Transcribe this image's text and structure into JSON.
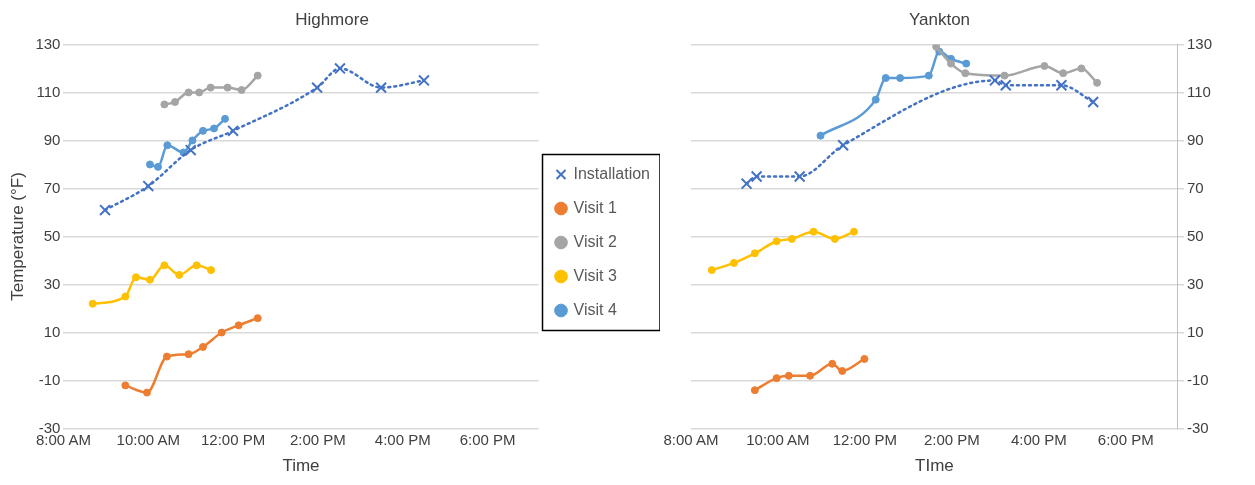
{
  "chart_data": [
    {
      "type": "line",
      "title": "Highmore",
      "xlabel": "Time",
      "ylabel": "Temperature (°F)",
      "xlim": [
        8,
        19.2
      ],
      "xticks": [
        {
          "value": 8,
          "label": "8:00 AM"
        },
        {
          "value": 10,
          "label": "10:00 AM"
        },
        {
          "value": 12,
          "label": "12:00 PM"
        },
        {
          "value": 14,
          "label": "2:00 PM"
        },
        {
          "value": 16,
          "label": "4:00 PM"
        },
        {
          "value": 18,
          "label": "6:00 PM"
        }
      ],
      "ylim": [
        -30,
        130
      ],
      "yticks": [
        -30,
        -10,
        10,
        30,
        50,
        70,
        90,
        110,
        130
      ],
      "grid": "y",
      "legend": "right",
      "series": [
        {
          "name": "Installation",
          "color": "#4472c4",
          "marker": "cross",
          "line_style": "dotted",
          "x": [
            8.98,
            10.0,
            11.0,
            12.0,
            13.98,
            14.52,
            15.49,
            16.5
          ],
          "values": [
            61,
            71,
            86,
            94,
            112,
            120,
            112,
            115
          ]
        },
        {
          "name": "Visit 1",
          "color": "#ed7d31",
          "marker": "circle",
          "line_style": "solid",
          "x": [
            9.46,
            9.97,
            10.44,
            10.95,
            11.29,
            11.73,
            12.13,
            12.58
          ],
          "values": [
            -12,
            -15,
            0,
            1,
            4,
            10,
            13,
            16
          ]
        },
        {
          "name": "Visit 2",
          "color": "#a5a5a5",
          "marker": "circle",
          "line_style": "solid",
          "x": [
            10.38,
            10.63,
            10.95,
            11.2,
            11.47,
            11.87,
            12.2,
            12.58
          ],
          "values": [
            105,
            106,
            110,
            110,
            112,
            112,
            111,
            117
          ]
        },
        {
          "name": "Visit 3",
          "color": "#ffc000",
          "marker": "circle",
          "line_style": "solid",
          "x": [
            8.69,
            9.46,
            9.71,
            10.04,
            10.38,
            10.73,
            11.14,
            11.48
          ],
          "values": [
            22,
            25,
            33,
            32,
            38,
            34,
            38,
            36
          ]
        },
        {
          "name": "Visit 4",
          "color": "#5b9bd5",
          "marker": "circle",
          "line_style": "solid",
          "x": [
            10.04,
            10.23,
            10.45,
            10.83,
            11.04,
            11.29,
            11.55,
            11.81
          ],
          "values": [
            80,
            79,
            88,
            85,
            90,
            94,
            95,
            99
          ]
        }
      ]
    },
    {
      "type": "line",
      "title": "Yankton",
      "xlabel": "TIme",
      "xlim": [
        8,
        19.2
      ],
      "xticks": [
        {
          "value": 8,
          "label": "8:00 AM"
        },
        {
          "value": 10,
          "label": "10:00 AM"
        },
        {
          "value": 12,
          "label": "12:00 PM"
        },
        {
          "value": 14,
          "label": "2:00 PM"
        },
        {
          "value": 16,
          "label": "4:00 PM"
        },
        {
          "value": 18,
          "label": "6:00 PM"
        }
      ],
      "y2lim": [
        -30,
        130
      ],
      "y2ticks": [
        -30,
        -10,
        10,
        30,
        50,
        70,
        90,
        110,
        130
      ],
      "grid": "y",
      "series": [
        {
          "color": "#4472c4",
          "axis": "y2",
          "marker": "cross",
          "line_style": "dotted",
          "x": [
            9.28,
            9.51,
            10.5,
            11.5,
            14.99,
            15.24,
            16.52,
            17.25
          ],
          "values": [
            72,
            75,
            75,
            88,
            115,
            113,
            113,
            106
          ]
        },
        {
          "color": "#ed7d31",
          "axis": "y2",
          "marker": "circle",
          "line_style": "solid",
          "x": [
            9.47,
            9.97,
            10.25,
            10.74,
            11.25,
            11.48,
            11.99
          ],
          "values": [
            -14,
            -9,
            -8,
            -8,
            -3,
            -6,
            -1
          ]
        },
        {
          "color": "#a5a5a5",
          "axis": "y2",
          "marker": "circle",
          "line_style": "solid",
          "x": [
            13.64,
            13.98,
            14.31,
            15.21,
            16.13,
            16.56,
            16.98,
            17.34
          ],
          "values": [
            129,
            122,
            118,
            117,
            121,
            118,
            120,
            114
          ]
        },
        {
          "color": "#ffc000",
          "axis": "y2",
          "marker": "circle",
          "line_style": "solid",
          "x": [
            8.48,
            8.99,
            9.47,
            9.97,
            10.32,
            10.82,
            11.31,
            11.75
          ],
          "values": [
            36,
            39,
            43,
            48,
            49,
            52,
            49,
            52
          ]
        },
        {
          "color": "#5b9bd5",
          "axis": "y2",
          "marker": "circle",
          "line_style": "solid",
          "x": [
            10.98,
            12.25,
            12.48,
            12.81,
            13.47,
            13.71,
            13.98,
            14.33
          ],
          "values": [
            92,
            107,
            116,
            116,
            117,
            127,
            124,
            122
          ]
        }
      ]
    }
  ]
}
